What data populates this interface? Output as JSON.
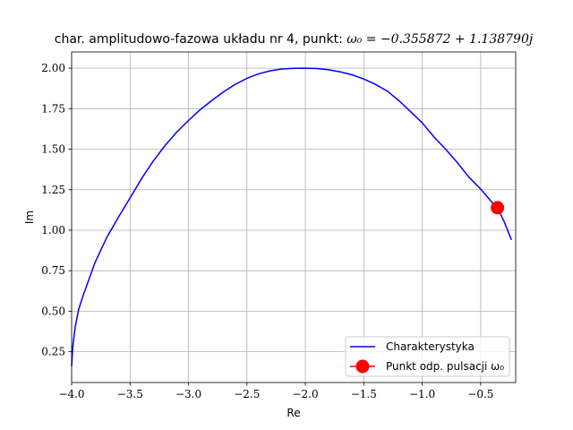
{
  "chart_data": {
    "type": "line",
    "title_text": "char. amplitudowo-fazowa układu nr 4, punkt: ",
    "title_math": "ω₀ = −0.355872 + 1.138790j",
    "xlabel": "Re",
    "ylabel": "Im",
    "xlim": [
      -4.0,
      -0.2
    ],
    "ylim": [
      0.06,
      2.1
    ],
    "xticks": [
      -4.0,
      -3.5,
      -3.0,
      -2.5,
      -2.0,
      -1.5,
      -1.0,
      -0.5
    ],
    "xtick_labels": [
      "−4.0",
      "−3.5",
      "−3.0",
      "−2.5",
      "−2.0",
      "−1.5",
      "−1.0",
      "−0.5"
    ],
    "yticks": [
      0.25,
      0.5,
      0.75,
      1.0,
      1.25,
      1.5,
      1.75,
      2.0
    ],
    "ytick_labels": [
      "0.25",
      "0.50",
      "0.75",
      "1.00",
      "1.25",
      "1.50",
      "1.75",
      "2.00"
    ],
    "grid": true,
    "legend_position": "lower-right",
    "series": [
      {
        "name": "Charakterystyka",
        "color": "#0000ff",
        "style": "line",
        "x": [
          -4.0,
          -3.99,
          -3.97,
          -3.94,
          -3.9,
          -3.8,
          -3.7,
          -3.6,
          -3.5,
          -3.4,
          -3.3,
          -3.2,
          -3.1,
          -3.0,
          -2.9,
          -2.8,
          -2.7,
          -2.6,
          -2.5,
          -2.4,
          -2.3,
          -2.2,
          -2.1,
          -2.0,
          -1.9,
          -1.8,
          -1.7,
          -1.6,
          -1.5,
          -1.4,
          -1.3,
          -1.2,
          -1.1,
          -1.0,
          -0.9,
          -0.8,
          -0.7,
          -0.6,
          -0.5,
          -0.4,
          -0.356,
          -0.3,
          -0.236
        ],
        "y": [
          0.16,
          0.282,
          0.4,
          0.511,
          0.6,
          0.8,
          0.954,
          1.08,
          1.199,
          1.32,
          1.428,
          1.523,
          1.606,
          1.677,
          1.744,
          1.8,
          1.854,
          1.9,
          1.937,
          1.965,
          1.984,
          1.995,
          1.999,
          2.0,
          1.998,
          1.99,
          1.977,
          1.959,
          1.933,
          1.9,
          1.859,
          1.8,
          1.732,
          1.663,
          1.576,
          1.5,
          1.418,
          1.327,
          1.254,
          1.17,
          1.139,
          1.055,
          0.94
        ]
      },
      {
        "name": "Punkt odp. pulsacji ω₀",
        "color": "#ff0000",
        "style": "marker",
        "x": [
          -0.355872
        ],
        "y": [
          1.13879
        ]
      }
    ]
  }
}
